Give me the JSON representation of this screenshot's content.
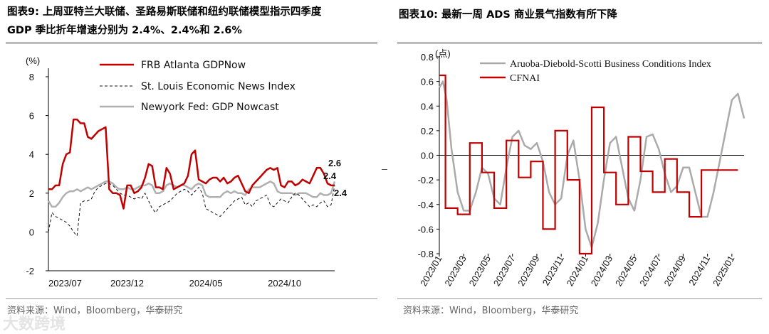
{
  "left": {
    "title_line1": "图表9:   上周亚特兰大联储、圣路易斯联储和纽约联储模型指示四季度",
    "title_line2": "GDP 季比折年增速分别为 2.4%、2.4%和 2.6%",
    "source": "资料来源：Wind，Bloomberg，华泰研究"
  },
  "right": {
    "title": "图表10:   最新一周 ADS 商业景气指数有所下降",
    "source": "资料来源：Wind，Bloomberg，华泰研究"
  },
  "watermark": "大数跨境",
  "chart_data": [
    {
      "type": "line",
      "ylabel": "(%)",
      "ylim": [
        -2,
        8
      ],
      "yticks": [
        "8",
        "6",
        "4",
        "2",
        "0",
        "-2"
      ],
      "xlim": [
        0,
        80
      ],
      "xticks": [
        {
          "x": 0,
          "label": "2023/07"
        },
        {
          "x": 22,
          "label": "2023/12"
        },
        {
          "x": 44,
          "label": "2024/05"
        },
        {
          "x": 66,
          "label": "2024/10"
        }
      ],
      "legend": [
        "FRB Atlanta GDPNow",
        "St. Louis Economic News Index",
        "Newyork Fed: GDP Nowcast"
      ],
      "end_labels": [
        {
          "text": "2.6",
          "series": 2,
          "color": "#aaaaaa"
        },
        {
          "text": "2.4",
          "series": 0,
          "color": "#c00000"
        },
        {
          "text": "2.4",
          "series": 1,
          "color": "#111111"
        }
      ],
      "series": [
        {
          "name": "FRB Atlanta GDPNow",
          "color": "#c00000",
          "style": "solid",
          "x": [
            0,
            1,
            2,
            3,
            4,
            5,
            6,
            7,
            8,
            9,
            10,
            11,
            12,
            13,
            14,
            15,
            16,
            17,
            18,
            19,
            20,
            21,
            22,
            23,
            24,
            25,
            26,
            27,
            28,
            29,
            30,
            31,
            32,
            33,
            34,
            35,
            36,
            37,
            38,
            39,
            40,
            41,
            42,
            43,
            44,
            45,
            46,
            47,
            48,
            49,
            50,
            51,
            52,
            53,
            54,
            55,
            56,
            57,
            58,
            59,
            60,
            61,
            62,
            63,
            64,
            65,
            66,
            67,
            68,
            69,
            70,
            71,
            72,
            73,
            74,
            75,
            76,
            77,
            78,
            79,
            80
          ],
          "y": [
            2.2,
            2.2,
            2.4,
            2.4,
            3.5,
            4.0,
            4.1,
            5.8,
            5.8,
            5.6,
            5.6,
            4.9,
            4.8,
            5.0,
            5.2,
            5.3,
            5.4,
            2.2,
            2.0,
            2.0,
            1.9,
            1.2,
            2.4,
            2.4,
            2.0,
            2.1,
            2.3,
            2.8,
            3.5,
            3.4,
            2.3,
            2.3,
            2.2,
            3.3,
            3.0,
            2.2,
            2.3,
            2.4,
            2.5,
            2.9,
            4.0,
            4.2,
            2.7,
            2.6,
            2.5,
            2.7,
            2.8,
            2.8,
            2.6,
            2.8,
            2.5,
            2.6,
            2.8,
            2.9,
            2.5,
            2.1,
            2.0,
            2.4,
            2.6,
            2.8,
            3.0,
            3.2,
            3.3,
            3.2,
            3.3,
            2.4,
            2.3,
            2.6,
            2.6,
            2.4,
            2.5,
            2.7,
            2.6,
            2.5,
            2.9,
            3.3,
            3.3,
            3.0,
            2.5,
            2.4,
            2.4
          ]
        },
        {
          "name": "St. Louis Economic News Index",
          "color": "#111111",
          "style": "dashed",
          "x": [
            0,
            1,
            2,
            3,
            4,
            5,
            6,
            7,
            8,
            9,
            10,
            11,
            12,
            13,
            14,
            15,
            16,
            17,
            18,
            19,
            20,
            21,
            22,
            23,
            24,
            25,
            26,
            27,
            28,
            29,
            30,
            31,
            32,
            33,
            34,
            35,
            36,
            37,
            38,
            39,
            40,
            41,
            42,
            43,
            44,
            45,
            46,
            47,
            48,
            49,
            50,
            51,
            52,
            53,
            54,
            55,
            56,
            57,
            58,
            59,
            60,
            61,
            62,
            63,
            64,
            65,
            66,
            67,
            68,
            69,
            70,
            71,
            72,
            73,
            74,
            75,
            76,
            77,
            78,
            79,
            80
          ],
          "y": [
            0.0,
            1.0,
            0.8,
            0.7,
            0.6,
            0.5,
            0.3,
            0.0,
            -0.2,
            1.5,
            1.6,
            1.6,
            1.7,
            2.1,
            2.3,
            2.4,
            2.5,
            2.5,
            2.4,
            2.2,
            2.0,
            1.9,
            1.9,
            1.8,
            1.7,
            1.8,
            1.7,
            2.0,
            1.6,
            1.2,
            1.0,
            1.3,
            1.4,
            1.5,
            1.6,
            1.8,
            2.0,
            2.1,
            2.2,
            2.1,
            1.9,
            2.1,
            2.3,
            2.0,
            1.2,
            1.1,
            1.0,
            0.9,
            0.8,
            1.0,
            1.2,
            1.4,
            1.6,
            1.7,
            1.8,
            1.4,
            1.5,
            1.3,
            1.6,
            1.7,
            1.8,
            1.9,
            1.4,
            1.3,
            1.5,
            1.7,
            1.6,
            1.5,
            1.8,
            2.0,
            1.9,
            1.7,
            1.5,
            1.3,
            1.4,
            1.3,
            1.5,
            1.6,
            1.3,
            1.4,
            2.4
          ]
        },
        {
          "name": "Newyork Fed: GDP Nowcast",
          "color": "#b0b0b0",
          "style": "solid",
          "x": [
            0,
            1,
            2,
            3,
            4,
            5,
            6,
            7,
            8,
            9,
            10,
            11,
            12,
            13,
            14,
            15,
            16,
            17,
            18,
            19,
            20,
            21,
            22,
            23,
            24,
            25,
            26,
            27,
            28,
            29,
            30,
            31,
            32,
            33,
            34,
            35,
            36,
            37,
            38,
            39,
            40,
            41,
            42,
            43,
            44,
            45,
            46,
            47,
            48,
            49,
            50,
            51,
            52,
            53,
            54,
            55,
            56,
            57,
            58,
            59,
            60,
            61,
            62,
            63,
            64,
            65,
            66,
            67,
            68,
            69,
            70,
            71,
            72,
            73,
            74,
            75,
            76,
            77,
            78,
            79,
            80
          ],
          "y": [
            1.6,
            1.3,
            1.3,
            1.5,
            1.8,
            2.0,
            2.1,
            2.1,
            2.2,
            2.1,
            2.2,
            2.3,
            2.2,
            2.3,
            2.4,
            2.5,
            2.6,
            2.6,
            2.5,
            2.3,
            2.2,
            2.2,
            2.3,
            2.2,
            2.2,
            2.3,
            2.4,
            2.4,
            2.5,
            2.4,
            2.0,
            2.0,
            2.1,
            2.4,
            2.5,
            2.4,
            2.3,
            2.4,
            2.4,
            2.3,
            2.2,
            2.4,
            2.5,
            2.4,
            1.9,
            1.8,
            1.8,
            1.8,
            1.8,
            2.0,
            2.1,
            2.0,
            2.1,
            2.0,
            2.0,
            1.9,
            2.2,
            2.3,
            2.3,
            2.3,
            2.4,
            2.5,
            2.6,
            2.5,
            2.1,
            2.0,
            2.0,
            2.0,
            2.0,
            1.9,
            2.0,
            2.0,
            2.0,
            1.9,
            1.8,
            1.8,
            2.0,
            1.9,
            1.9,
            2.0,
            2.6
          ]
        }
      ]
    },
    {
      "type": "line",
      "ylabel": "(点)",
      "ylim": [
        -0.8,
        0.8
      ],
      "yticks": [
        "0.8",
        "0.6",
        "0.4",
        "0.2",
        "0.0",
        "-0.2",
        "-0.4",
        "-0.6",
        "-0.8"
      ],
      "xlim": [
        0,
        25
      ],
      "xticks": [
        {
          "x": 0,
          "label": "2023/01"
        },
        {
          "x": 2,
          "label": "2023/03"
        },
        {
          "x": 4,
          "label": "2023/05"
        },
        {
          "x": 6,
          "label": "2023/07"
        },
        {
          "x": 8,
          "label": "2023/09"
        },
        {
          "x": 10,
          "label": "2023/11"
        },
        {
          "x": 12,
          "label": "2024/01"
        },
        {
          "x": 14,
          "label": "2024/03"
        },
        {
          "x": 16,
          "label": "2024/05"
        },
        {
          "x": 18,
          "label": "2024/07"
        },
        {
          "x": 20,
          "label": "2024/09"
        },
        {
          "x": 22,
          "label": "2024/11"
        },
        {
          "x": 24,
          "label": "2025/01"
        }
      ],
      "legend": [
        "Aruoba-Diebold-Scotti Business Conditions Index",
        "CFNAI"
      ],
      "series": [
        {
          "name": "Aruoba-Diebold-Scotti Business Conditions Index",
          "color": "#aaaaaa",
          "style": "solid",
          "x": [
            0,
            0.3,
            0.6,
            1.0,
            1.5,
            2.0,
            2.5,
            3.0,
            3.5,
            4.0,
            4.5,
            5.0,
            5.5,
            6.0,
            6.5,
            7.0,
            7.5,
            8.0,
            8.5,
            9.0,
            9.5,
            10.0,
            10.5,
            11.0,
            11.5,
            12.0,
            12.5,
            13.0,
            13.5,
            14.0,
            14.5,
            15.0,
            15.5,
            16.0,
            16.5,
            17.0,
            17.5,
            18.0,
            18.5,
            19.0,
            19.5,
            20.0,
            20.5,
            21.0,
            21.5,
            22.0,
            22.5,
            23.0,
            23.5,
            24.0,
            24.5,
            25.0
          ],
          "y": [
            0.55,
            0.6,
            0.45,
            0.05,
            -0.3,
            -0.45,
            -0.45,
            -0.3,
            -0.1,
            -0.15,
            -0.35,
            -0.4,
            -0.1,
            0.15,
            0.2,
            0.08,
            0.05,
            0.1,
            -0.05,
            -0.3,
            -0.4,
            -0.35,
            0.0,
            0.12,
            -0.2,
            -0.6,
            -0.75,
            -0.55,
            -0.2,
            0.1,
            0.15,
            -0.1,
            -0.35,
            -0.45,
            -0.2,
            0.15,
            0.17,
            0.05,
            -0.15,
            -0.3,
            -0.25,
            -0.1,
            -0.1,
            -0.3,
            -0.5,
            -0.5,
            -0.3,
            -0.05,
            0.2,
            0.45,
            0.5,
            0.3
          ]
        },
        {
          "name": "CFNAI",
          "color": "#c00000",
          "style": "step",
          "x": [
            0,
            0.5,
            1.5,
            2.5,
            3.5,
            4.5,
            5.5,
            6.5,
            7.5,
            8.5,
            9.5,
            10.5,
            11.5,
            12.5,
            13.5,
            14.5,
            15.5,
            16.5,
            17.5,
            18.5,
            19.5,
            20.5,
            21.5,
            22.5,
            23.5
          ],
          "y": [
            0.65,
            -0.43,
            -0.48,
            0.1,
            -0.14,
            -0.43,
            0.12,
            -0.18,
            -0.05,
            -0.6,
            0.2,
            -0.2,
            -0.8,
            0.39,
            -0.14,
            -0.4,
            0.15,
            -0.13,
            -0.3,
            -0.03,
            -0.3,
            -0.5,
            -0.12,
            -0.12,
            -0.12
          ]
        }
      ]
    }
  ]
}
